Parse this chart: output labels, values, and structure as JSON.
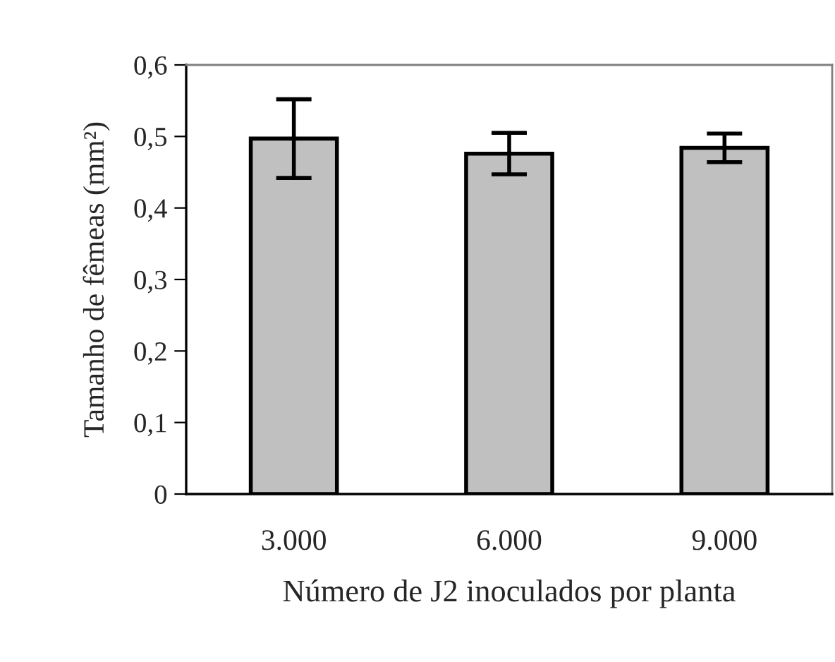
{
  "chart_data": {
    "type": "bar",
    "xlabel": "Número de J2 inoculados por planta",
    "ylabel": "Tamanho de fêmeas (mm²)",
    "categories": [
      "3.000",
      "6.000",
      "9.000"
    ],
    "values": [
      0.497,
      0.476,
      0.484
    ],
    "errors": [
      0.055,
      0.029,
      0.02
    ],
    "color": "#c0c0c0",
    "ylim": [
      0,
      0.6
    ],
    "yticks": [
      {
        "value": 0,
        "label": "0"
      },
      {
        "value": 0.1,
        "label": "0,1"
      },
      {
        "value": 0.2,
        "label": "0,2"
      },
      {
        "value": 0.3,
        "label": "0,3"
      },
      {
        "value": 0.4,
        "label": "0,4"
      },
      {
        "value": 0.5,
        "label": "0,5"
      },
      {
        "value": 0.6,
        "label": "0,6"
      }
    ],
    "grid": false
  }
}
